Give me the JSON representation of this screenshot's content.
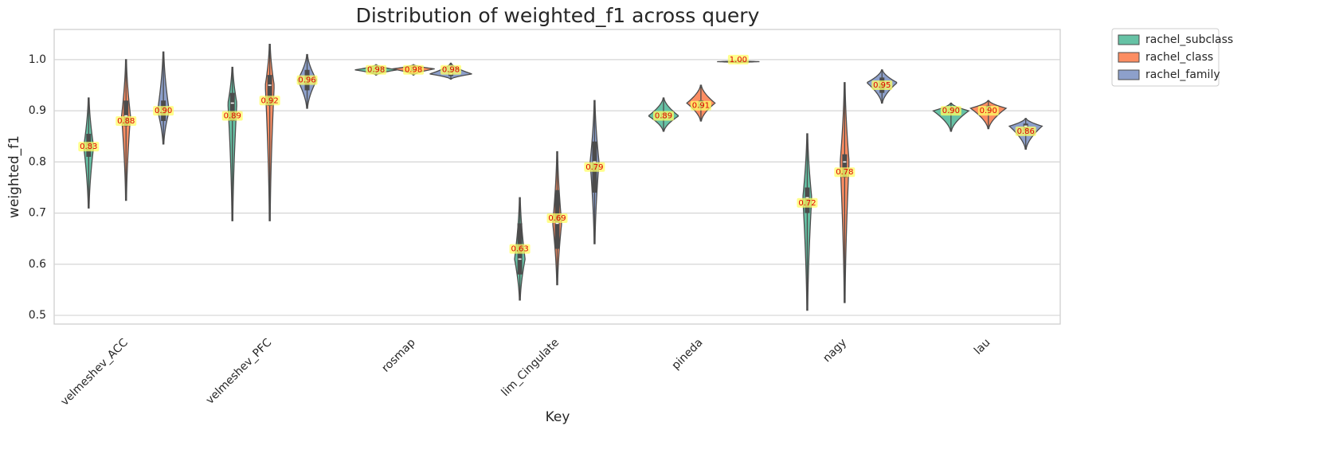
{
  "chart_data": {
    "type": "violin",
    "title": "Distribution of weighted_f1 across query",
    "x_label": "Key",
    "y_label": "weighted_f1",
    "categories": [
      "velmeshev_ACC",
      "velmeshev_PFC",
      "rosmap",
      "lim_Cingulate",
      "pineda",
      "nagy",
      "lau"
    ],
    "ylim": [
      0.483,
      1.059
    ],
    "yticks": [
      0.5,
      0.6,
      0.7,
      0.8,
      0.9,
      {
        "value": 1.0,
        "label": "1.0"
      }
    ],
    "grid": "y",
    "legend": "outside upper right",
    "series": [
      {
        "name": "rachel_subclass",
        "color": "#66c2a5",
        "values": [
          0.83,
          0.89,
          0.98,
          0.63,
          0.89,
          0.72,
          0.9
        ],
        "value_labels": [
          "0.83",
          "0.89",
          "0.98",
          "0.63",
          "0.89",
          "0.72",
          "0.90"
        ],
        "min": [
          0.71,
          0.685,
          0.97,
          0.53,
          0.86,
          0.51,
          0.86
        ],
        "q1": [
          0.81,
          0.88,
          0.976,
          0.58,
          0.885,
          0.7,
          0.895
        ],
        "median": [
          0.83,
          0.915,
          0.98,
          0.61,
          0.89,
          0.73,
          0.9
        ],
        "q3": [
          0.855,
          0.935,
          0.984,
          0.68,
          0.895,
          0.75,
          0.905
        ],
        "max": [
          0.925,
          0.985,
          0.99,
          0.73,
          0.925,
          0.855,
          0.915
        ]
      },
      {
        "name": "rachel_class",
        "color": "#fc8d62",
        "values": [
          0.88,
          0.92,
          0.98,
          0.69,
          0.91,
          0.78,
          0.9
        ],
        "value_labels": [
          "0.88",
          "0.92",
          "0.98",
          "0.69",
          "0.91",
          "0.78",
          "0.90"
        ],
        "min": [
          0.725,
          0.685,
          0.97,
          0.56,
          0.88,
          0.525,
          0.865
        ],
        "q1": [
          0.87,
          0.91,
          0.978,
          0.63,
          0.905,
          0.77,
          0.9
        ],
        "median": [
          0.89,
          0.95,
          0.982,
          0.68,
          0.915,
          0.8,
          0.905
        ],
        "q3": [
          0.92,
          0.97,
          0.986,
          0.745,
          0.92,
          0.815,
          0.91
        ],
        "max": [
          1.0,
          1.03,
          0.99,
          0.82,
          0.95,
          0.955,
          0.92
        ]
      },
      {
        "name": "rachel_family",
        "color": "#8da0cb",
        "values": [
          0.9,
          0.96,
          0.98,
          0.79,
          1.0,
          0.95,
          0.86
        ],
        "value_labels": [
          "0.90",
          "0.96",
          "0.98",
          "0.79",
          "1.00",
          "0.95",
          "0.86"
        ],
        "min": [
          0.835,
          0.905,
          0.962,
          0.64,
          0.994,
          0.915,
          0.825
        ],
        "q1": [
          0.88,
          0.94,
          0.968,
          0.74,
          0.995,
          0.935,
          0.86
        ],
        "median": [
          0.9,
          0.96,
          0.972,
          0.8,
          0.996,
          0.955,
          0.87
        ],
        "q3": [
          0.92,
          0.98,
          0.978,
          0.84,
          0.997,
          0.965,
          0.875
        ],
        "max": [
          1.015,
          1.01,
          0.993,
          0.92,
          0.998,
          0.98,
          0.885
        ]
      }
    ]
  }
}
